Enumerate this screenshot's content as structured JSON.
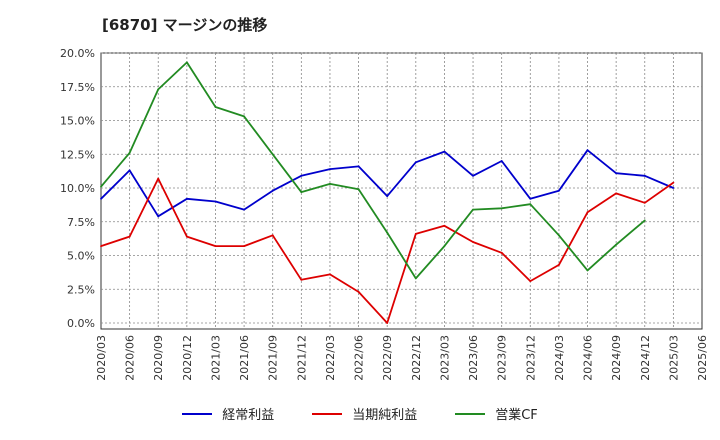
{
  "chart_data": {
    "type": "line",
    "title": "[6870]  マージンの推移",
    "x": [
      "2020/03",
      "2020/06",
      "2020/09",
      "2020/12",
      "2021/03",
      "2021/06",
      "2021/09",
      "2021/12",
      "2022/03",
      "2022/06",
      "2022/09",
      "2022/12",
      "2023/03",
      "2023/06",
      "2023/09",
      "2023/12",
      "2024/03",
      "2024/06",
      "2024/09",
      "2024/12",
      "2025/03",
      "2025/06"
    ],
    "yticks": [
      "20.0%",
      "17.5%",
      "15.0%",
      "12.5%",
      "10.0%",
      "7.5%",
      "5.0%",
      "2.5%",
      "0.0%"
    ],
    "ylim": [
      0,
      20
    ],
    "grid": true,
    "legend_position": "bottom",
    "series": [
      {
        "name": "経常利益",
        "color": "#0000cc",
        "values": [
          9.2,
          11.3,
          7.9,
          9.2,
          9.0,
          8.4,
          9.8,
          10.9,
          11.4,
          11.6,
          9.4,
          11.9,
          12.7,
          10.9,
          12.0,
          9.2,
          9.8,
          12.8,
          11.1,
          10.9,
          10.0,
          null
        ]
      },
      {
        "name": "当期純利益",
        "color": "#dd0000",
        "values": [
          5.7,
          6.4,
          10.7,
          6.4,
          5.7,
          5.7,
          6.5,
          3.2,
          3.6,
          2.3,
          0.0,
          6.6,
          7.2,
          6.0,
          5.2,
          3.1,
          4.3,
          8.2,
          9.6,
          8.9,
          10.4,
          null
        ]
      },
      {
        "name": "営業CF",
        "color": "#228b22",
        "values": [
          10.1,
          12.6,
          17.3,
          19.3,
          16.0,
          15.3,
          12.5,
          9.7,
          10.3,
          9.9,
          6.7,
          3.3,
          5.7,
          8.4,
          8.5,
          8.8,
          6.5,
          3.9,
          5.8,
          7.6,
          null,
          null
        ]
      }
    ]
  }
}
